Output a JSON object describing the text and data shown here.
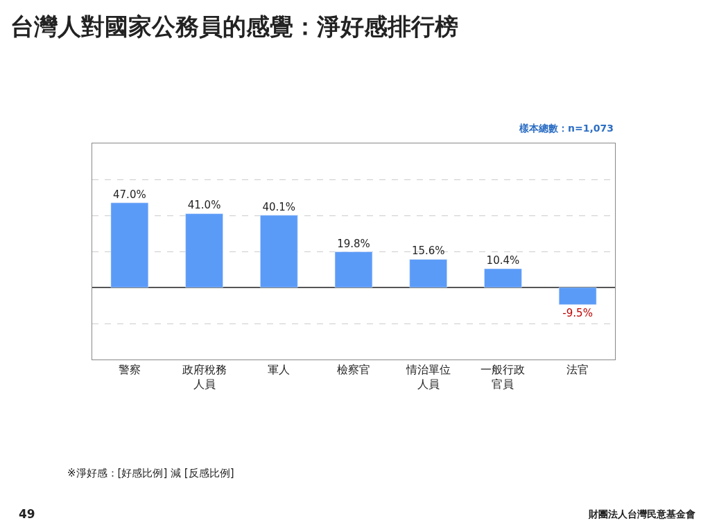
{
  "chart_data": {
    "type": "bar",
    "title": "台灣人對國家公務員的感覺：淨好感排行榜",
    "categories": [
      "警察",
      "政府稅務人員",
      "軍人",
      "檢察官",
      "情治單位人員",
      "一般行政官員",
      "法官"
    ],
    "values": [
      47.0,
      41.0,
      40.1,
      19.8,
      15.6,
      10.4,
      -9.5
    ],
    "value_labels": [
      "47.0%",
      "41.0%",
      "40.1%",
      "19.8%",
      "15.6%",
      "10.4%",
      "-9.5%"
    ],
    "color": "#5b9bf8",
    "ylim": [
      -40,
      80
    ],
    "yticks": [
      {
        "value": -40,
        "label": null
      },
      {
        "value": -20,
        "label": null
      },
      {
        "value": 0,
        "label": null
      },
      {
        "value": 20,
        "label": null
      },
      {
        "value": 40,
        "label": null
      },
      {
        "value": 60,
        "label": null
      },
      {
        "value": 80,
        "label": null
      }
    ],
    "tick_labels": "x",
    "grid": "y",
    "legend": false,
    "annotations": [
      "樣本總數：n=1,073",
      "※淨好感：[好感比例] 減 [反感比例]",
      "49",
      "財團法人台灣民意基金會"
    ]
  }
}
